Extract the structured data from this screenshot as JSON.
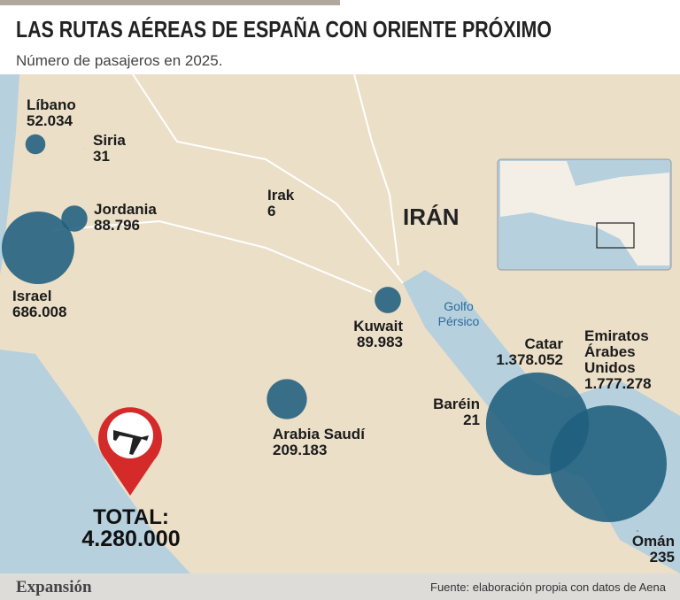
{
  "header": {
    "title": "LAS RUTAS AÉREAS DE ESPAÑA CON ORIENTE PRÓXIMO",
    "subtitle": "Número de pasajeros en 2025."
  },
  "countries": [
    {
      "name": "Líbano",
      "value": 52034,
      "value_label": "52.034"
    },
    {
      "name": "Siria",
      "value": 31,
      "value_label": "31"
    },
    {
      "name": "Jordania",
      "value": 88796,
      "value_label": "88.796"
    },
    {
      "name": "Israel",
      "value": 686008,
      "value_label": "686.008"
    },
    {
      "name": "Irak",
      "value": 6,
      "value_label": "6"
    },
    {
      "name": "Kuwait",
      "value": 89983,
      "value_label": "89.983"
    },
    {
      "name": "Arabia Saudí",
      "value": 209183,
      "value_label": "209.183"
    },
    {
      "name": "Catar",
      "value": 1378052,
      "value_label": "1.378.052"
    },
    {
      "name": "Baréin",
      "value": 21,
      "value_label": "21"
    },
    {
      "name": "Emiratos Árabes Unidos",
      "value": 1777278,
      "value_label": "1.777.278"
    },
    {
      "name": "Omán",
      "value": 235,
      "value_label": "235"
    }
  ],
  "map_labels": {
    "iran": "IRÁN",
    "gulf": "Golfo Pérsico"
  },
  "total": {
    "title": "TOTAL:",
    "value": 4280000,
    "label": "4.280.000"
  },
  "footer": {
    "brand": "Expansión",
    "source": "Fuente: elaboración propia con datos de Aena"
  }
}
